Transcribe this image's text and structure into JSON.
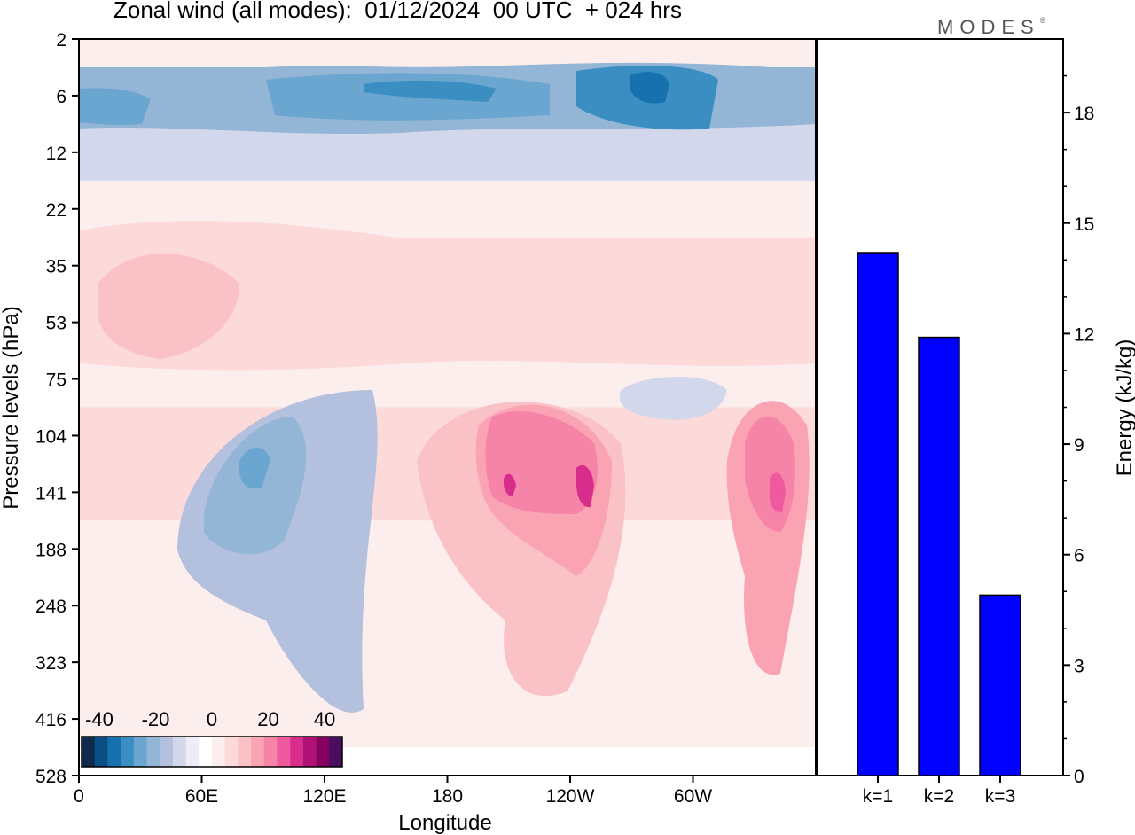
{
  "title": "Zonal wind (all modes):  01/12/2024  00 UTC  + 024 hrs",
  "logo": "MODES",
  "logo_mark": "®",
  "chart_data": [
    {
      "type": "heatmap",
      "xlabel": "Longitude",
      "ylabel": "Pressure levels (hPa)",
      "x_ticks": [
        "0",
        "60E",
        "120E",
        "180",
        "120W",
        "60W"
      ],
      "y_ticks": [
        "2",
        "6",
        "12",
        "22",
        "35",
        "53",
        "75",
        "104",
        "141",
        "188",
        "248",
        "323",
        "416",
        "528"
      ],
      "colorbar": {
        "labels": [
          "-40",
          "-20",
          "0",
          "20",
          "40"
        ],
        "colors": [
          "#0f2a4a",
          "#0a4f84",
          "#1671ae",
          "#3a8ec2",
          "#6aa6cf",
          "#93b5d6",
          "#b4c1de",
          "#d3d7eb",
          "#eeedf5",
          "#ffffff",
          "#fdeeee",
          "#fcdada",
          "#fac1c6",
          "#f9a3b3",
          "#f684a8",
          "#ef5a9e",
          "#d82d8c",
          "#b01176",
          "#86005f",
          "#4a0e5e"
        ]
      },
      "bands": [
        {
          "level": "2",
          "value": 2
        },
        {
          "level": "6",
          "value": -20
        },
        {
          "level": "12",
          "value": -10
        },
        {
          "level": "22",
          "value": 2
        },
        {
          "level": "35",
          "value": 8
        },
        {
          "level": "53",
          "value": 5
        },
        {
          "level": "75",
          "value": 2
        },
        {
          "level": "104",
          "value": 5
        },
        {
          "level": "141",
          "value": 8
        },
        {
          "level": "188",
          "value": 4
        },
        {
          "level": "248",
          "value": 2
        },
        {
          "level": "323",
          "value": 1
        },
        {
          "level": "416",
          "value": 0
        },
        {
          "level": "528",
          "value": -2
        }
      ]
    },
    {
      "type": "bar",
      "categories": [
        "k=1",
        "k=2",
        "k=3"
      ],
      "values": [
        14.2,
        11.9,
        4.9
      ],
      "ylabel": "Energy (kJ/kg)",
      "ylim": [
        0,
        20
      ],
      "y_ticks": [
        0,
        3,
        6,
        9,
        12,
        15,
        18
      ],
      "bar_color": "#0000ff"
    }
  ]
}
